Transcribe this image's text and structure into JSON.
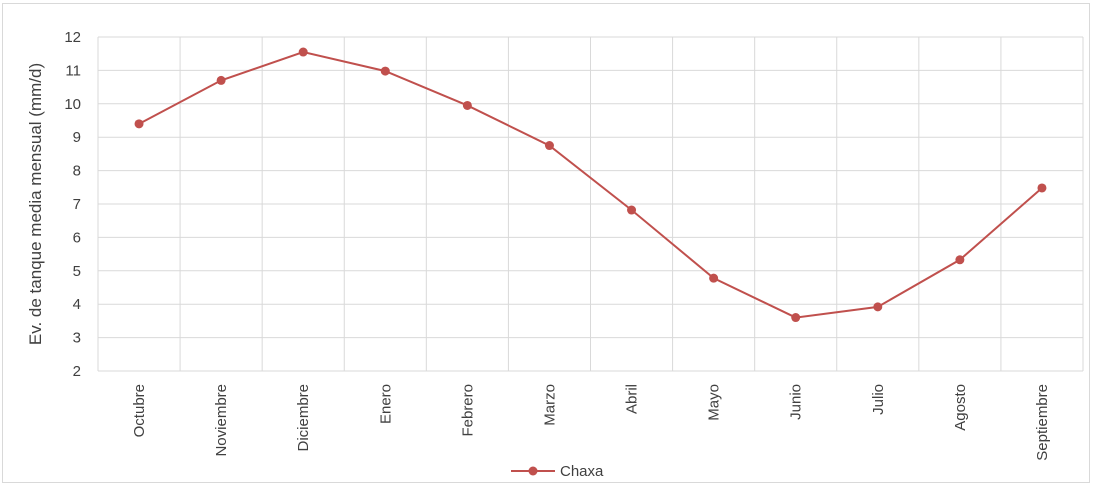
{
  "chart_data": {
    "type": "line",
    "ylabel": "Ev. de tanque media mensual (mm/d)",
    "xlabel": "",
    "categories": [
      "Octubre",
      "Noviembre",
      "Diciembre",
      "Enero",
      "Febrero",
      "Marzo",
      "Abril",
      "Mayo",
      "Junio",
      "Julio",
      "Agosto",
      "Septiembre"
    ],
    "series": [
      {
        "name": "Chaxa",
        "color": "#c0504d",
        "values": [
          9.4,
          10.7,
          11.55,
          10.98,
          9.95,
          8.75,
          6.82,
          4.78,
          3.6,
          3.92,
          5.33,
          7.48
        ]
      }
    ],
    "ylim": [
      2,
      12
    ],
    "yticks": [
      2,
      3,
      4,
      5,
      6,
      7,
      8,
      9,
      10,
      11,
      12
    ],
    "grid": true,
    "legend": "bottom"
  }
}
